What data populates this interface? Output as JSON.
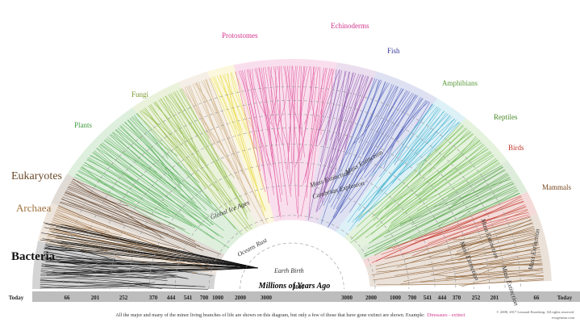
{
  "groups": [
    {
      "label": "Bacteria",
      "color": "#111111"
    },
    {
      "label": "Archaea",
      "color": "#a0703c"
    },
    {
      "label": "Eukaryotes",
      "color": "#6b4a2a"
    },
    {
      "label": "Plants",
      "color": "#3f9b3f"
    },
    {
      "label": "Fungi",
      "color": "#7a9a2a"
    },
    {
      "label": "Protostomes",
      "color": "#d2368a"
    },
    {
      "label": "Echinoderms",
      "color": "#d2368a"
    },
    {
      "label": "Fish",
      "color": "#3a3a9a"
    },
    {
      "label": "Amphibians",
      "color": "#5a9a3a"
    },
    {
      "label": "Reptiles",
      "color": "#4a8a2a"
    },
    {
      "label": "Birds",
      "color": "#c0392b"
    },
    {
      "label": "Mammals",
      "color": "#7a4a22"
    }
  ],
  "events": [
    "Global Ice Ages",
    "Cambrian Explosion",
    "Mass Extinction",
    "Mass Extinction",
    "Mass Extinction",
    "Mass Extinction",
    "Mass Extinction",
    "Mass Extinction",
    "Oceans Rust",
    "Earth Birth"
  ],
  "axis": {
    "title": "Millions of Years Ago",
    "ticks": [
      "Today",
      "66",
      "201",
      "252",
      "370",
      "444",
      "541",
      "700",
      "1000",
      "2000",
      "3000",
      "4000",
      "3000",
      "2000",
      "1000",
      "700",
      "541",
      "444",
      "370",
      "252",
      "201",
      "66",
      "Today"
    ]
  },
  "caption": {
    "text": "All the major and many of the minor living branches of life are shown on this diagram, but only a few of those that have gone extinct are shown. Example:",
    "example": "Dinosaurs - extinct"
  },
  "copyright": [
    "© 2008, 2017 Leonard Eisenberg. All rights reserved.",
    "evogeneao.com"
  ]
}
